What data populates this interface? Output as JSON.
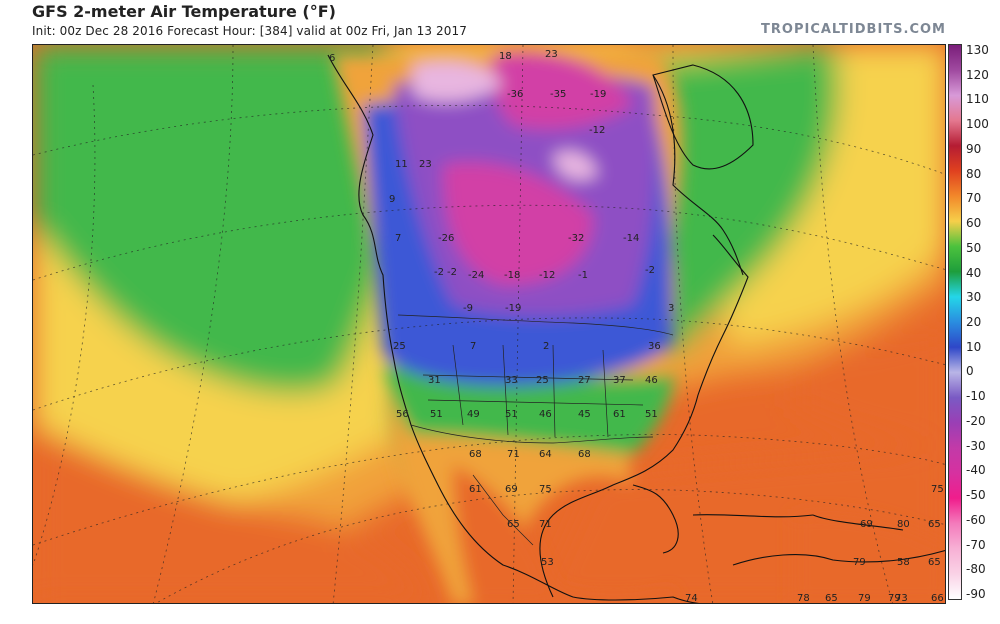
{
  "header": {
    "title": "GFS 2-meter Air Temperature (°F)",
    "subtitle": "Init: 00z Dec 28 2016   Forecast Hour: [384]   valid at 00z Fri, Jan 13 2017",
    "credit": "TROPICALTIDBITS.COM"
  },
  "colorbar": {
    "ticks": [
      "130",
      "120",
      "110",
      "100",
      "90",
      "80",
      "70",
      "60",
      "50",
      "40",
      "30",
      "20",
      "10",
      "0",
      "-10",
      "-20",
      "-30",
      "-40",
      "-50",
      "-60",
      "-70",
      "-80",
      "-90"
    ],
    "stops": [
      {
        "value": 130,
        "color": "#7a1e7a"
      },
      {
        "value": 120,
        "color": "#a04aa0"
      },
      {
        "value": 110,
        "color": "#d89ad8"
      },
      {
        "value": 100,
        "color": "#e4788f"
      },
      {
        "value": 90,
        "color": "#b51c33"
      },
      {
        "value": 80,
        "color": "#e0411f"
      },
      {
        "value": 70,
        "color": "#f2882a"
      },
      {
        "value": 60,
        "color": "#f6cf4a"
      },
      {
        "value": 50,
        "color": "#4cc23d"
      },
      {
        "value": 40,
        "color": "#1e9e3c"
      },
      {
        "value": 30,
        "color": "#24d6e8"
      },
      {
        "value": 20,
        "color": "#2a8de0"
      },
      {
        "value": 10,
        "color": "#2e47c8"
      },
      {
        "value": 0,
        "color": "#b9b5e6"
      },
      {
        "value": -10,
        "color": "#7a5ac4"
      },
      {
        "value": -20,
        "color": "#9a3fb5"
      },
      {
        "value": -30,
        "color": "#c23aa8"
      },
      {
        "value": -40,
        "color": "#d631a0"
      },
      {
        "value": -50,
        "color": "#f01d8c"
      },
      {
        "value": -60,
        "color": "#f47bbc"
      },
      {
        "value": -70,
        "color": "#f7b0d5"
      },
      {
        "value": -80,
        "color": "#fad2e6"
      },
      {
        "value": -90,
        "color": "#ffffff"
      }
    ]
  },
  "map": {
    "colors": {
      "ocean_tropical": "#e8692a",
      "ocean_warm": "#f1a13a",
      "ocean_mid": "#f6d24e",
      "ocean_cool": "#43b84b",
      "land_warm": "#f0a33a",
      "land_cold": "#3c59d6",
      "land_frigid": "#8e4fc4",
      "land_extreme": "#d23fa6",
      "ice": "#e8b6e0"
    },
    "station_values": [
      {
        "text": "6"
      },
      {
        "text": "18"
      },
      {
        "text": "23"
      },
      {
        "text": "-36"
      },
      {
        "text": "-35"
      },
      {
        "text": "-19"
      },
      {
        "text": "-12"
      },
      {
        "text": "11"
      },
      {
        "text": "23"
      },
      {
        "text": "9"
      },
      {
        "text": "7"
      },
      {
        "text": "-2"
      },
      {
        "text": "-26"
      },
      {
        "text": "-24"
      },
      {
        "text": "-18"
      },
      {
        "text": "-12"
      },
      {
        "text": "-1"
      },
      {
        "text": "-14"
      },
      {
        "text": "-9"
      },
      {
        "text": "-19"
      },
      {
        "text": "-2"
      },
      {
        "text": "25"
      },
      {
        "text": "7"
      },
      {
        "text": "2"
      },
      {
        "text": "31"
      },
      {
        "text": "33"
      },
      {
        "text": "25"
      },
      {
        "text": "27"
      },
      {
        "text": "37"
      },
      {
        "text": "46"
      },
      {
        "text": "56"
      },
      {
        "text": "51"
      },
      {
        "text": "49"
      },
      {
        "text": "51"
      },
      {
        "text": "46"
      },
      {
        "text": "45"
      },
      {
        "text": "61"
      },
      {
        "text": "51"
      },
      {
        "text": "68"
      },
      {
        "text": "71"
      },
      {
        "text": "64"
      },
      {
        "text": "68"
      },
      {
        "text": "61"
      },
      {
        "text": "69"
      },
      {
        "text": "75"
      },
      {
        "text": "65"
      },
      {
        "text": "71"
      },
      {
        "text": "53"
      },
      {
        "text": "74"
      },
      {
        "text": "79"
      },
      {
        "text": "69"
      },
      {
        "text": "80"
      },
      {
        "text": "65"
      },
      {
        "text": "79"
      },
      {
        "text": "58"
      },
      {
        "text": "65"
      },
      {
        "text": "78"
      },
      {
        "text": "65"
      },
      {
        "text": "79"
      },
      {
        "text": "73"
      },
      {
        "text": "66"
      },
      {
        "text": "75"
      },
      {
        "text": "3"
      },
      {
        "text": "36"
      },
      {
        "text": "-2"
      },
      {
        "text": "-32"
      }
    ]
  }
}
